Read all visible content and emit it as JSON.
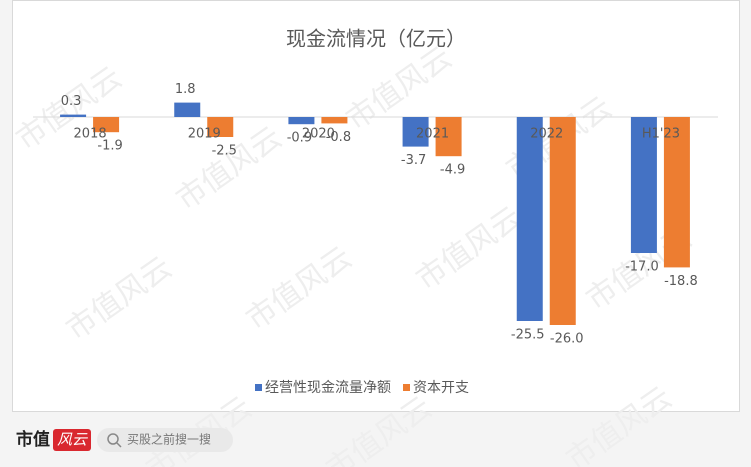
{
  "chart_data": {
    "type": "bar",
    "title": "现金流情况（亿元）",
    "categories": [
      "2018",
      "2019",
      "2020",
      "2021",
      "2022",
      "H1'23"
    ],
    "series": [
      {
        "name": "经营性现金流量净额",
        "color": "#4472c4",
        "values": [
          0.3,
          1.8,
          -0.9,
          -3.7,
          -25.5,
          -17.0
        ],
        "value_labels": [
          "0.3",
          "1.8",
          "-0.9",
          "-3.7",
          "-25.5",
          "-17.0"
        ]
      },
      {
        "name": "资本开支",
        "color": "#ed7d31",
        "values": [
          -1.9,
          -2.5,
          -0.8,
          -4.9,
          -26.0,
          -18.8
        ],
        "value_labels": [
          "-1.9",
          "-2.5",
          "-0.8",
          "-4.9",
          "-26.0",
          "-18.8"
        ]
      }
    ],
    "ylim": [
      -28,
      3
    ],
    "legend": "bottom"
  },
  "watermark": "市值风云",
  "footer": {
    "logo_left": "市值",
    "logo_right": "风云",
    "search_placeholder": "买股之前搜一搜"
  }
}
